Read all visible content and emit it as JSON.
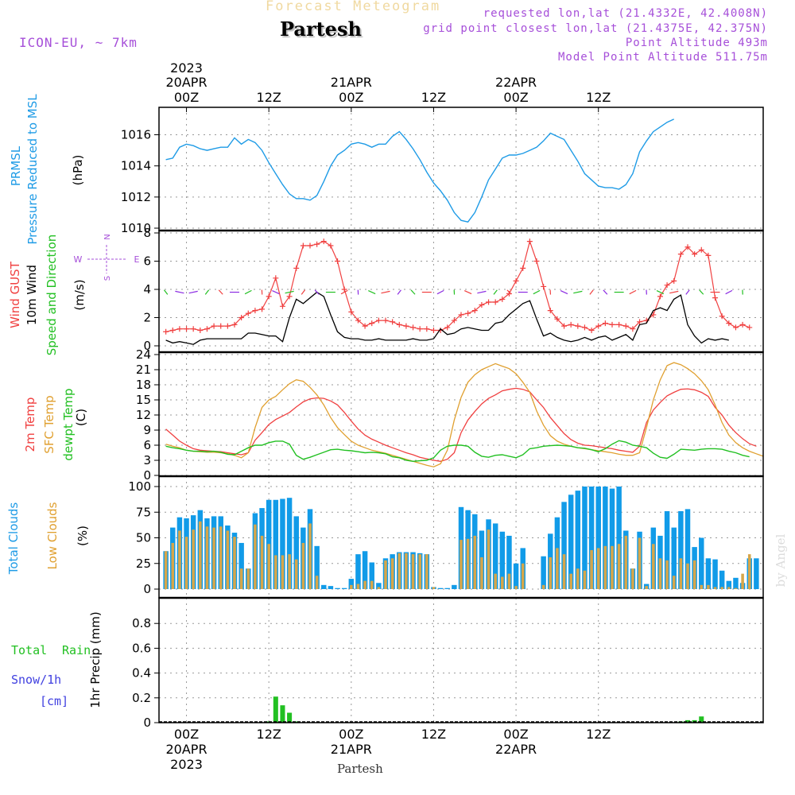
{
  "header": {
    "subtitle": "Forecast Meteogram",
    "title": "Partesh",
    "model": "ICON-EU, ~ 7km",
    "requested": "requested lon,lat (21.4332E, 42.4008N)",
    "grid": "grid point closest lon,lat (21.4375E, 42.375N)",
    "point_alt": "Point Altitude 493m",
    "model_alt": "Model Point Altitude 511.75m"
  },
  "footer": {
    "location": "Partesh",
    "credit": "by Angel"
  },
  "colors": {
    "pressure": "#1e9be6",
    "gust": "#f04040",
    "wind": "#000000",
    "sfc": "#e0a030",
    "dewpt": "#22c022",
    "total_cloud": "#119be8",
    "low_cloud": "#d6a64a",
    "rain": "#22c022",
    "snow": "#4040e0",
    "purple": "#a64fd9"
  },
  "time_axis": {
    "top_year": "2023",
    "top_labels": [
      {
        "hour": "00Z",
        "date": "20APR"
      },
      {
        "hour": "12Z",
        "date": ""
      },
      {
        "hour": "00Z",
        "date": "21APR"
      },
      {
        "hour": "12Z",
        "date": ""
      },
      {
        "hour": "00Z",
        "date": "22APR"
      },
      {
        "hour": "12Z",
        "date": ""
      }
    ],
    "bottom_year": "2023",
    "bottom_labels": [
      {
        "hour": "00Z",
        "date": "20APR"
      },
      {
        "hour": "12Z",
        "date": ""
      },
      {
        "hour": "00Z",
        "date": "21APR"
      },
      {
        "hour": "12Z",
        "date": ""
      },
      {
        "hour": "00Z",
        "date": "22APR"
      },
      {
        "hour": "12Z",
        "date": ""
      }
    ]
  },
  "panel_labels": {
    "pressure": [
      "PRMSL",
      "Pressure Reduced to MSL",
      "(hPa)"
    ],
    "wind": [
      "Wind GUST",
      "10m Wind",
      "Speed and Direction",
      "(m/s)"
    ],
    "compass": {
      "n": "N",
      "s": "S",
      "w": "W",
      "e": "E"
    },
    "temp": [
      "2m Temp",
      "SFC Temp",
      "dewpt Temp",
      "(C)"
    ],
    "cloud": [
      "Total Clouds",
      "Low Clouds",
      "(%)"
    ],
    "precip": [
      "Total",
      "Rain",
      "Snow/1h",
      "[cm]",
      "1hr Precip (mm)"
    ]
  },
  "chart_data": [
    {
      "type": "line",
      "title": "PRMSL",
      "ylabel": "(hPa)",
      "ylim": [
        1010,
        1017.2
      ],
      "yticks": [
        1010,
        1012,
        1014,
        1016
      ],
      "hours_from": -3,
      "hours_step": 1,
      "series": [
        {
          "name": "PRMSL",
          "values": [
            1014.4,
            1014.5,
            1015.2,
            1015.4,
            1015.3,
            1015.1,
            1015.0,
            1015.1,
            1015.2,
            1015.2,
            1015.8,
            1015.4,
            1015.7,
            1015.5,
            1015.0,
            1014.2,
            1013.5,
            1012.8,
            1012.2,
            1011.9,
            1011.9,
            1011.8,
            1012.1,
            1013.0,
            1014.0,
            1014.7,
            1015.0,
            1015.4,
            1015.5,
            1015.4,
            1015.2,
            1015.4,
            1015.4,
            1015.9,
            1016.2,
            1015.7,
            1015.1,
            1014.4,
            1013.6,
            1012.9,
            1012.4,
            1011.8,
            1011.0,
            1010.5,
            1010.4,
            1011.0,
            1012.0,
            1013.1,
            1013.8,
            1014.5,
            1014.7,
            1014.7,
            1014.8,
            1015.0,
            1015.2,
            1015.6,
            1016.1,
            1015.9,
            1015.7,
            1015.0,
            1014.3,
            1013.5,
            1013.1,
            1012.7,
            1012.6,
            1012.6,
            1012.5,
            1012.8,
            1013.5,
            1014.9,
            1015.6,
            1016.2,
            1016.5,
            1016.8,
            1017.0
          ]
        }
      ]
    },
    {
      "type": "line",
      "title": "Wind",
      "ylabel": "(m/s)",
      "ylim": [
        0,
        8
      ],
      "yticks": [
        0,
        2,
        4,
        6,
        8
      ],
      "hours_from": -3,
      "hours_step": 1,
      "series": [
        {
          "name": "Wind GUST",
          "values": [
            1.0,
            1.1,
            1.2,
            1.2,
            1.2,
            1.1,
            1.2,
            1.4,
            1.4,
            1.4,
            1.5,
            2.0,
            2.3,
            2.5,
            2.6,
            3.5,
            4.8,
            2.8,
            3.5,
            5.5,
            7.1,
            7.1,
            7.2,
            7.4,
            7.1,
            6.0,
            4.0,
            2.4,
            1.8,
            1.4,
            1.6,
            1.8,
            1.8,
            1.7,
            1.5,
            1.4,
            1.3,
            1.2,
            1.2,
            1.1,
            1.1,
            1.3,
            1.8,
            2.2,
            2.3,
            2.5,
            2.9,
            3.1,
            3.1,
            3.3,
            3.7,
            4.6,
            5.5,
            7.4,
            6.0,
            4.2,
            2.5,
            1.9,
            1.4,
            1.5,
            1.4,
            1.3,
            1.1,
            1.4,
            1.6,
            1.5,
            1.5,
            1.4,
            1.2,
            1.7,
            1.8,
            2.2,
            3.5,
            4.3,
            4.6,
            6.5,
            7.0,
            6.5,
            6.8,
            6.4,
            3.4,
            2.1,
            1.6,
            1.3,
            1.5,
            1.3
          ]
        },
        {
          "name": "10m Wind",
          "values": [
            0.4,
            0.2,
            0.3,
            0.2,
            0.1,
            0.4,
            0.5,
            0.5,
            0.5,
            0.5,
            0.5,
            0.5,
            0.9,
            0.9,
            0.8,
            0.7,
            0.7,
            0.3,
            2.0,
            3.3,
            3.0,
            3.4,
            3.8,
            3.5,
            2.2,
            1.0,
            0.6,
            0.5,
            0.5,
            0.4,
            0.4,
            0.5,
            0.4,
            0.4,
            0.4,
            0.4,
            0.5,
            0.4,
            0.4,
            0.5,
            1.2,
            0.8,
            0.9,
            1.2,
            1.3,
            1.2,
            1.1,
            1.1,
            1.6,
            1.7,
            2.2,
            2.6,
            3.0,
            3.2,
            1.9,
            0.7,
            0.9,
            0.6,
            0.4,
            0.3,
            0.4,
            0.6,
            0.4,
            0.6,
            0.7,
            0.4,
            0.6,
            0.8,
            0.4,
            1.5,
            1.6,
            2.5,
            2.7,
            2.5,
            3.3,
            3.6,
            1.5,
            0.7,
            0.2,
            0.5,
            0.4,
            0.5,
            0.4
          ]
        }
      ]
    },
    {
      "type": "line",
      "title": "Temperature",
      "ylabel": "(C)",
      "ylim": [
        0,
        24
      ],
      "yticks": [
        0,
        3,
        6,
        9,
        12,
        15,
        18,
        21,
        24
      ],
      "hours_from": -3,
      "hours_step": 1,
      "series": [
        {
          "name": "2m Temp",
          "values": [
            9.2,
            8.0,
            6.8,
            6.0,
            5.3,
            5.0,
            4.9,
            4.8,
            4.7,
            4.5,
            4.3,
            4.1,
            4.5,
            7.0,
            8.5,
            10.1,
            11.1,
            11.8,
            12.5,
            13.6,
            14.6,
            15.2,
            15.4,
            15.3,
            14.8,
            14.0,
            12.5,
            10.8,
            9.2,
            8.0,
            7.2,
            6.6,
            6.0,
            5.5,
            5.0,
            4.5,
            4.1,
            3.6,
            3.3,
            3.0,
            2.8,
            3.2,
            4.5,
            8.5,
            11.0,
            12.7,
            14.2,
            15.3,
            16.0,
            16.8,
            17.1,
            17.3,
            17.1,
            16.6,
            15.0,
            13.5,
            11.5,
            9.9,
            8.3,
            7.1,
            6.4,
            6.0,
            5.9,
            5.7,
            5.5,
            5.3,
            5.0,
            4.8,
            4.6,
            5.8,
            10.5,
            13.0,
            14.5,
            15.8,
            16.5,
            17.1,
            17.2,
            17.0,
            16.5,
            15.7,
            13.5,
            12.0,
            10.0,
            8.5,
            7.3,
            6.3,
            5.8
          ]
        },
        {
          "name": "SFC Temp",
          "values": [
            6.2,
            5.8,
            5.5,
            5.0,
            4.8,
            4.7,
            4.6,
            4.6,
            4.5,
            4.3,
            4.0,
            3.5,
            4.5,
            9.5,
            13.5,
            15.0,
            15.7,
            17.0,
            18.2,
            19.0,
            18.7,
            17.5,
            16.0,
            14.0,
            11.5,
            9.5,
            8.1,
            6.8,
            6.0,
            5.5,
            5.0,
            4.7,
            4.4,
            4.0,
            3.6,
            3.2,
            2.8,
            2.4,
            2.0,
            1.7,
            2.3,
            5.0,
            11.0,
            15.5,
            18.5,
            20.0,
            21.0,
            21.6,
            22.2,
            21.7,
            21.2,
            20.2,
            18.5,
            16.5,
            12.8,
            10.0,
            7.9,
            6.8,
            6.2,
            5.8,
            5.5,
            5.3,
            5.1,
            4.9,
            4.7,
            4.5,
            4.2,
            4.0,
            4.0,
            4.5,
            9.5,
            15.0,
            19.0,
            21.8,
            22.4,
            22.0,
            21.2,
            20.2,
            18.8,
            17.0,
            14.0,
            10.5,
            8.0,
            6.5,
            5.5,
            4.8,
            4.3,
            3.8
          ]
        },
        {
          "name": "dewpt Temp",
          "values": [
            5.8,
            5.5,
            5.3,
            5.0,
            4.8,
            4.8,
            4.7,
            4.8,
            4.6,
            4.2,
            4.1,
            4.8,
            5.5,
            6.0,
            6.0,
            6.5,
            6.8,
            6.8,
            6.2,
            4.0,
            3.2,
            3.6,
            4.1,
            4.6,
            5.1,
            5.2,
            5.0,
            4.9,
            4.7,
            4.5,
            4.6,
            4.5,
            4.3,
            3.7,
            3.5,
            3.0,
            2.8,
            2.9,
            3.0,
            3.5,
            5.0,
            5.8,
            6.0,
            6.0,
            5.8,
            4.6,
            3.8,
            3.6,
            4.0,
            4.1,
            3.8,
            3.5,
            4.1,
            5.3,
            5.5,
            5.8,
            5.9,
            6.0,
            5.9,
            5.8,
            5.5,
            5.4,
            5.1,
            4.7,
            5.3,
            6.2,
            6.9,
            6.6,
            6.0,
            5.8,
            5.5,
            4.4,
            3.6,
            3.4,
            4.2,
            5.2,
            5.1,
            5.0,
            5.2,
            5.3,
            5.3,
            5.2,
            4.8,
            4.5,
            4.0,
            3.7
          ]
        }
      ]
    },
    {
      "type": "bar",
      "title": "Clouds",
      "ylabel": "(%)",
      "ylim": [
        0,
        100
      ],
      "yticks": [
        0,
        25,
        50,
        75,
        100
      ],
      "hours_from": -3,
      "hours_step": 1,
      "series": [
        {
          "name": "Total Clouds",
          "values": [
            37,
            60,
            70,
            69,
            72,
            77,
            69,
            71,
            71,
            62,
            55,
            45,
            20,
            74,
            79,
            87,
            87,
            88,
            89,
            71,
            60,
            78,
            42,
            4,
            3,
            1,
            1,
            10,
            34,
            37,
            26,
            6,
            30,
            34,
            36,
            36,
            36,
            35,
            34,
            2,
            1,
            1,
            4,
            80,
            77,
            73,
            57,
            68,
            64,
            56,
            52,
            25,
            40,
            0,
            0,
            32,
            54,
            70,
            85,
            92,
            96,
            100,
            100,
            100,
            100,
            98,
            100,
            57,
            20,
            56,
            5,
            60,
            52,
            76,
            60,
            76,
            78,
            41,
            50,
            30,
            29,
            18,
            8,
            11,
            6,
            30,
            30,
            29
          ]
        },
        {
          "name": "Low Clouds",
          "values": [
            37,
            45,
            57,
            51,
            58,
            66,
            61,
            60,
            61,
            57,
            51,
            20,
            20,
            63,
            52,
            44,
            33,
            33,
            34,
            29,
            45,
            64,
            13,
            0,
            0,
            0,
            0,
            4,
            5,
            8,
            8,
            2,
            28,
            30,
            35,
            35,
            34,
            34,
            34,
            2,
            0,
            0,
            0,
            48,
            49,
            52,
            31,
            58,
            15,
            12,
            15,
            3,
            25,
            0,
            0,
            4,
            31,
            40,
            34,
            15,
            20,
            18,
            38,
            40,
            42,
            42,
            44,
            52,
            20,
            50,
            3,
            44,
            30,
            28,
            13,
            30,
            25,
            28,
            4,
            4,
            2,
            2,
            2,
            1,
            15,
            34
          ]
        }
      ]
    },
    {
      "type": "bar",
      "title": "1hr Precip",
      "ylabel": "1hr Precip (mm)",
      "ylim": [
        0,
        1.0
      ],
      "yticks": [
        0,
        0.2,
        0.4,
        0.6,
        0.8
      ],
      "hours_from": -3,
      "hours_step": 1,
      "series": [
        {
          "name": "Total Rain",
          "values": [
            0,
            0,
            0,
            0,
            0,
            0,
            0,
            0,
            0,
            0,
            0,
            0,
            0,
            0,
            0,
            0.01,
            0.21,
            0.14,
            0.08,
            0.01,
            0,
            0,
            0,
            0,
            0,
            0,
            0,
            0,
            0,
            0,
            0,
            0,
            0,
            0,
            0,
            0,
            0,
            0,
            0,
            0,
            0,
            0,
            0,
            0,
            0,
            0,
            0,
            0,
            0,
            0,
            0,
            0,
            0,
            0,
            0,
            0,
            0,
            0,
            0,
            0,
            0,
            0,
            0,
            0,
            0,
            0,
            0,
            0,
            0,
            0,
            0,
            0,
            0,
            0,
            0,
            0.01,
            0.02,
            0.02,
            0.05,
            0,
            0,
            0,
            0,
            0,
            0,
            0,
            0
          ]
        }
      ]
    }
  ]
}
